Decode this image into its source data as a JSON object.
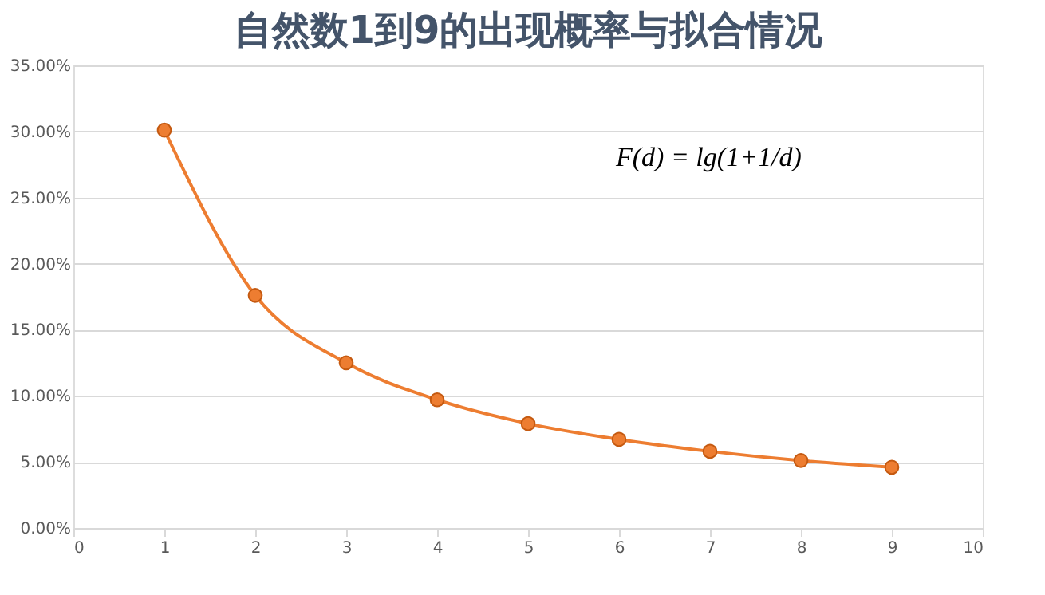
{
  "chart_data": {
    "type": "line",
    "title": "自然数1到9的出现概率与拟合情况",
    "x": [
      1,
      2,
      3,
      4,
      5,
      6,
      7,
      8,
      9
    ],
    "series": [
      {
        "color": "#ed7d31",
        "values": [
          30.1,
          17.6,
          12.5,
          9.7,
          7.9,
          6.7,
          5.8,
          5.1,
          4.6
        ]
      }
    ],
    "xlim": [
      0,
      10
    ],
    "xticks": [
      0,
      1,
      2,
      3,
      4,
      5,
      6,
      7,
      8,
      9,
      10
    ],
    "ylim": [
      0,
      35
    ],
    "yticks": [
      {
        "value": 0,
        "label": "0.00%"
      },
      {
        "value": 5,
        "label": "5.00%"
      },
      {
        "value": 10,
        "label": "10.00%"
      },
      {
        "value": 15,
        "label": "15.00%"
      },
      {
        "value": 20,
        "label": "20.00%"
      },
      {
        "value": 25,
        "label": "25.00%"
      },
      {
        "value": 30,
        "label": "30.00%"
      },
      {
        "value": 35,
        "label": "35.00%"
      }
    ],
    "grid": "y",
    "marker": "circle",
    "line_style": "solid",
    "annotations": [
      "F(d) = lg(1+1/d)"
    ]
  }
}
